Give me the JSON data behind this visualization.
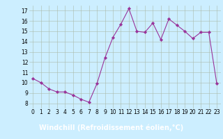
{
  "x": [
    0,
    1,
    2,
    3,
    4,
    5,
    6,
    7,
    8,
    9,
    10,
    11,
    12,
    13,
    14,
    15,
    16,
    17,
    18,
    19,
    20,
    21,
    22,
    23
  ],
  "y": [
    10.4,
    10.0,
    9.4,
    9.1,
    9.1,
    8.8,
    8.4,
    8.1,
    9.9,
    12.4,
    14.4,
    15.7,
    17.2,
    15.0,
    14.9,
    15.8,
    14.2,
    16.2,
    15.6,
    15.0,
    14.3,
    14.9,
    14.9,
    9.9
  ],
  "xlabel": "Windchill (Refroidissement éolien,°C)",
  "xlim": [
    -0.5,
    23.5
  ],
  "ylim": [
    7.5,
    17.5
  ],
  "yticks": [
    8,
    9,
    10,
    11,
    12,
    13,
    14,
    15,
    16,
    17
  ],
  "xticks": [
    0,
    1,
    2,
    3,
    4,
    5,
    6,
    7,
    8,
    9,
    10,
    11,
    12,
    13,
    14,
    15,
    16,
    17,
    18,
    19,
    20,
    21,
    22,
    23
  ],
  "line_color": "#993399",
  "marker_color": "#993399",
  "bg_color": "#cceeff",
  "grid_color": "#aabbaa",
  "xlabel_color": "#ffffff",
  "xlabel_bg": "#993399",
  "tick_fontsize": 5.5,
  "xlabel_fontsize": 7.0
}
